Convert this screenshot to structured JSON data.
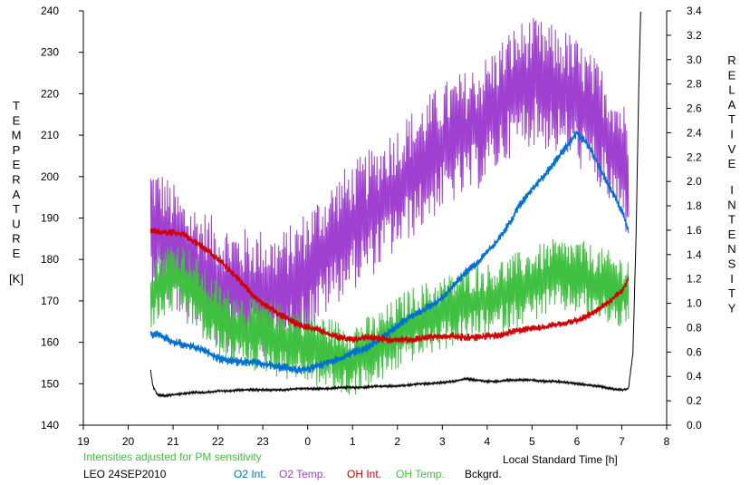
{
  "chart_data": {
    "type": "line",
    "xlabel": "Local Standard Time [h]",
    "x_ticks": [
      "19",
      "20",
      "21",
      "22",
      "23",
      "0",
      "1",
      "2",
      "3",
      "4",
      "5",
      "6",
      "7",
      "8"
    ],
    "xlim": [
      19,
      32
    ],
    "left_axis": {
      "label_letters": [
        "T",
        "E",
        "M",
        "P",
        "E",
        "R",
        "A",
        "T",
        "U",
        "R",
        "E"
      ],
      "unit": "[K]",
      "ylim": [
        140,
        240
      ],
      "ticks": [
        "140",
        "150",
        "160",
        "170",
        "180",
        "190",
        "200",
        "210",
        "220",
        "230",
        "240"
      ]
    },
    "right_axis": {
      "label_word1": [
        "R",
        "E",
        "L",
        "A",
        "T",
        "I",
        "V",
        "E"
      ],
      "label_word2": [
        "I",
        "N",
        "T",
        "E",
        "N",
        "S",
        "I",
        "T",
        "Y"
      ],
      "ylim": [
        0.0,
        3.4
      ],
      "ticks": [
        "0.0",
        "0.2",
        "0.4",
        "0.6",
        "0.8",
        "1.0",
        "1.2",
        "1.4",
        "1.6",
        "1.8",
        "2.0",
        "2.2",
        "2.4",
        "2.6",
        "2.8",
        "3.0",
        "3.2",
        "3.4"
      ]
    },
    "note": "Intensities adjusted for PM sensitivity",
    "site_date": "LEO 24SEP2010",
    "grid": false,
    "legend_position": "bottom",
    "series": [
      {
        "name": "O2 Int.",
        "axis": "right",
        "color": "#0070d0",
        "x": [
          20.5,
          20.75,
          21.0,
          21.25,
          21.5,
          21.75,
          22.0,
          22.25,
          22.5,
          22.75,
          23.0,
          23.25,
          23.5,
          23.75,
          24.0,
          24.25,
          24.5,
          24.75,
          25.0,
          25.25,
          25.5,
          25.75,
          26.0,
          26.25,
          26.5,
          26.75,
          27.0,
          27.25,
          27.5,
          27.75,
          28.0,
          28.25,
          28.5,
          28.75,
          29.0,
          29.25,
          29.5,
          29.75,
          30.0,
          30.25,
          30.5,
          30.75,
          31.0,
          31.15
        ],
        "y": [
          0.75,
          0.73,
          0.68,
          0.66,
          0.64,
          0.6,
          0.55,
          0.53,
          0.52,
          0.52,
          0.5,
          0.49,
          0.47,
          0.45,
          0.46,
          0.49,
          0.52,
          0.55,
          0.6,
          0.62,
          0.68,
          0.74,
          0.82,
          0.88,
          0.93,
          0.98,
          1.05,
          1.15,
          1.25,
          1.32,
          1.42,
          1.52,
          1.66,
          1.82,
          1.94,
          2.04,
          2.16,
          2.28,
          2.4,
          2.3,
          2.12,
          1.94,
          1.76,
          1.6
        ],
        "noise": 0.03
      },
      {
        "name": "O2 Temp.",
        "axis": "left",
        "color": "#a040d0",
        "x": [
          20.5,
          20.75,
          21.0,
          21.25,
          21.5,
          21.75,
          22.0,
          22.25,
          22.5,
          22.75,
          23.0,
          23.25,
          23.5,
          23.75,
          24.0,
          24.25,
          24.5,
          24.75,
          25.0,
          25.25,
          25.5,
          25.75,
          26.0,
          26.25,
          26.5,
          26.75,
          27.0,
          27.25,
          27.5,
          27.75,
          28.0,
          28.25,
          28.5,
          28.75,
          29.0,
          29.25,
          29.5,
          29.75,
          30.0,
          30.25,
          30.5,
          30.75,
          31.0,
          31.15
        ],
        "y": [
          188,
          186,
          183,
          180,
          178,
          176,
          174,
          173,
          172,
          172,
          172,
          171,
          172,
          174,
          177,
          180,
          183,
          186,
          188,
          190,
          192,
          195,
          197,
          200,
          202,
          205,
          207,
          209,
          210,
          212,
          214,
          217,
          220,
          222,
          223,
          222,
          221,
          220,
          218,
          215,
          212,
          208,
          204,
          200
        ],
        "noise": 12
      },
      {
        "name": "OH Int.",
        "axis": "right",
        "color": "#d00000",
        "x": [
          20.5,
          20.75,
          21.0,
          21.25,
          21.5,
          21.75,
          22.0,
          22.25,
          22.5,
          22.75,
          23.0,
          23.25,
          23.5,
          23.75,
          24.0,
          24.25,
          24.5,
          24.75,
          25.0,
          25.25,
          25.5,
          25.75,
          26.0,
          26.25,
          26.5,
          26.75,
          27.0,
          27.25,
          27.5,
          27.75,
          28.0,
          28.25,
          28.5,
          28.75,
          29.0,
          29.25,
          29.5,
          29.75,
          30.0,
          30.25,
          30.5,
          30.75,
          31.0,
          31.15
        ],
        "y": [
          1.6,
          1.58,
          1.58,
          1.56,
          1.5,
          1.44,
          1.36,
          1.28,
          1.18,
          1.08,
          1.0,
          0.94,
          0.88,
          0.83,
          0.8,
          0.78,
          0.74,
          0.72,
          0.7,
          0.72,
          0.72,
          0.7,
          0.7,
          0.7,
          0.71,
          0.72,
          0.73,
          0.73,
          0.72,
          0.72,
          0.73,
          0.74,
          0.76,
          0.78,
          0.8,
          0.8,
          0.82,
          0.84,
          0.86,
          0.9,
          0.96,
          1.02,
          1.1,
          1.2
        ],
        "noise": 0.025
      },
      {
        "name": "OH Temp.",
        "axis": "left",
        "color": "#40c040",
        "x": [
          20.5,
          20.75,
          21.0,
          21.25,
          21.5,
          21.75,
          22.0,
          22.25,
          22.5,
          22.75,
          23.0,
          23.25,
          23.5,
          23.75,
          24.0,
          24.25,
          24.5,
          24.75,
          25.0,
          25.25,
          25.5,
          25.75,
          26.0,
          26.25,
          26.5,
          26.75,
          27.0,
          27.25,
          27.5,
          27.75,
          28.0,
          28.25,
          28.5,
          28.75,
          29.0,
          29.25,
          29.5,
          29.75,
          30.0,
          30.25,
          30.5,
          30.75,
          31.0,
          31.15
        ],
        "y": [
          172,
          174,
          176,
          175,
          172,
          168,
          166,
          164,
          163,
          162,
          162,
          161,
          160,
          160,
          159,
          158,
          157,
          156,
          156,
          157,
          158,
          160,
          162,
          164,
          165,
          166,
          167,
          168,
          169,
          170,
          170,
          171,
          172,
          173,
          174,
          175,
          176,
          176,
          176,
          175,
          174,
          173,
          172,
          172
        ],
        "noise": 7
      },
      {
        "name": "Bckgrd.",
        "axis": "right",
        "color": "#000000",
        "x": [
          20.5,
          20.55,
          20.65,
          20.8,
          21.0,
          21.25,
          21.5,
          21.75,
          22.0,
          22.25,
          22.5,
          22.75,
          23.0,
          23.25,
          23.5,
          23.75,
          24.0,
          24.25,
          24.5,
          24.75,
          25.0,
          25.25,
          25.5,
          25.75,
          26.0,
          26.25,
          26.5,
          26.75,
          27.0,
          27.25,
          27.5,
          27.75,
          28.0,
          28.25,
          28.5,
          28.75,
          29.0,
          29.25,
          29.5,
          29.75,
          30.0,
          30.25,
          30.5,
          30.75,
          31.0,
          31.15,
          31.25,
          31.32,
          31.38,
          31.42
        ],
        "y": [
          0.45,
          0.32,
          0.25,
          0.24,
          0.25,
          0.26,
          0.27,
          0.27,
          0.28,
          0.28,
          0.29,
          0.29,
          0.29,
          0.29,
          0.29,
          0.3,
          0.3,
          0.3,
          0.3,
          0.31,
          0.31,
          0.31,
          0.32,
          0.32,
          0.32,
          0.33,
          0.34,
          0.34,
          0.35,
          0.36,
          0.38,
          0.37,
          0.36,
          0.36,
          0.37,
          0.37,
          0.37,
          0.36,
          0.36,
          0.35,
          0.34,
          0.33,
          0.32,
          0.3,
          0.29,
          0.3,
          0.6,
          1.6,
          2.8,
          3.4
        ],
        "noise": 0.008
      }
    ]
  }
}
